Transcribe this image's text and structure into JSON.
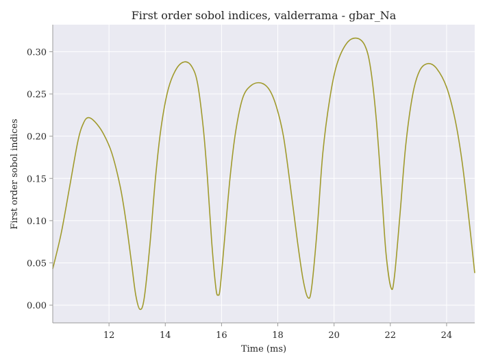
{
  "chart_data": {
    "type": "line",
    "title": "First order sobol indices, valderrama - gbar_Na",
    "xlabel": "Time (ms)",
    "ylabel": "First order sobol indices",
    "xlim": [
      10.0,
      25.0
    ],
    "ylim": [
      -0.021,
      0.332
    ],
    "xticks": [
      12,
      14,
      16,
      18,
      20,
      22,
      24
    ],
    "yticks": [
      0.0,
      0.05,
      0.1,
      0.15,
      0.2,
      0.25,
      0.3
    ],
    "xtick_labels": [
      "12",
      "14",
      "16",
      "18",
      "20",
      "22",
      "24"
    ],
    "ytick_labels": [
      "0.00",
      "0.05",
      "0.10",
      "0.15",
      "0.20",
      "0.25",
      "0.30"
    ],
    "grid": true,
    "background": "#eaeaf2",
    "series": [
      {
        "color": "#a09a2c",
        "points": [
          [
            10.0,
            0.043
          ],
          [
            10.3,
            0.085
          ],
          [
            10.6,
            0.14
          ],
          [
            10.9,
            0.195
          ],
          [
            11.1,
            0.216
          ],
          [
            11.27,
            0.222
          ],
          [
            11.5,
            0.217
          ],
          [
            11.8,
            0.203
          ],
          [
            12.1,
            0.18
          ],
          [
            12.4,
            0.14
          ],
          [
            12.6,
            0.1
          ],
          [
            12.8,
            0.05
          ],
          [
            12.95,
            0.012
          ],
          [
            13.1,
            -0.005
          ],
          [
            13.25,
            0.008
          ],
          [
            13.45,
            0.07
          ],
          [
            13.65,
            0.15
          ],
          [
            13.85,
            0.21
          ],
          [
            14.1,
            0.255
          ],
          [
            14.4,
            0.28
          ],
          [
            14.7,
            0.288
          ],
          [
            14.95,
            0.282
          ],
          [
            15.15,
            0.262
          ],
          [
            15.35,
            0.21
          ],
          [
            15.5,
            0.15
          ],
          [
            15.65,
            0.075
          ],
          [
            15.8,
            0.02
          ],
          [
            15.88,
            0.012
          ],
          [
            15.95,
            0.02
          ],
          [
            16.1,
            0.075
          ],
          [
            16.3,
            0.15
          ],
          [
            16.5,
            0.205
          ],
          [
            16.75,
            0.245
          ],
          [
            17.05,
            0.26
          ],
          [
            17.4,
            0.263
          ],
          [
            17.7,
            0.255
          ],
          [
            17.95,
            0.235
          ],
          [
            18.2,
            0.2
          ],
          [
            18.45,
            0.14
          ],
          [
            18.7,
            0.075
          ],
          [
            18.9,
            0.03
          ],
          [
            19.07,
            0.009
          ],
          [
            19.2,
            0.02
          ],
          [
            19.4,
            0.09
          ],
          [
            19.6,
            0.18
          ],
          [
            19.85,
            0.245
          ],
          [
            20.1,
            0.285
          ],
          [
            20.45,
            0.31
          ],
          [
            20.8,
            0.316
          ],
          [
            21.1,
            0.307
          ],
          [
            21.3,
            0.28
          ],
          [
            21.5,
            0.22
          ],
          [
            21.7,
            0.13
          ],
          [
            21.85,
            0.06
          ],
          [
            22.03,
            0.02
          ],
          [
            22.15,
            0.035
          ],
          [
            22.35,
            0.11
          ],
          [
            22.55,
            0.19
          ],
          [
            22.8,
            0.25
          ],
          [
            23.05,
            0.278
          ],
          [
            23.35,
            0.286
          ],
          [
            23.65,
            0.28
          ],
          [
            24.0,
            0.258
          ],
          [
            24.3,
            0.22
          ],
          [
            24.55,
            0.17
          ],
          [
            24.8,
            0.1
          ],
          [
            25.0,
            0.038
          ]
        ]
      }
    ]
  }
}
